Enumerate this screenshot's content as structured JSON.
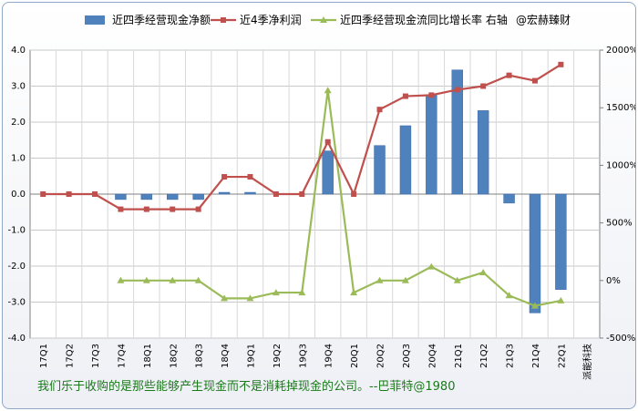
{
  "legend": {
    "items": [
      {
        "label": "近四季经营现金净额",
        "color": "#4f81bd",
        "kind": "bar"
      },
      {
        "label": "近4季净利润",
        "color": "#c0504d",
        "kind": "line-square"
      },
      {
        "label": "近四季经营现金流同比增长率 右轴",
        "color": "#9bbb59",
        "kind": "line-triangle"
      }
    ],
    "watermark": "@宏赫臻财"
  },
  "quote": "我们乐于收购的是那些能够产生现金而不是消耗掉现金的公司。--巴菲特@1980",
  "chart_data": {
    "type": "bar",
    "categories": [
      "17Q1",
      "17Q2",
      "17Q3",
      "17Q4",
      "18Q1",
      "18Q2",
      "18Q3",
      "18Q4",
      "19Q1",
      "19Q2",
      "19Q3",
      "19Q4",
      "20Q1",
      "20Q2",
      "20Q3",
      "20Q4",
      "21Q1",
      "21Q2",
      "21Q3",
      "21Q4",
      "22Q1",
      "派能科技"
    ],
    "y_left": {
      "min": -4.0,
      "max": 4.0,
      "step": 1.0,
      "tick_labels": [
        "4.0",
        "3.0",
        "2.0",
        "1.0",
        "0.0",
        "-1.0",
        "-2.0",
        "-3.0",
        "-4.0"
      ]
    },
    "y_right": {
      "min": -500,
      "max": 2000,
      "step": 500,
      "tick_labels": [
        "2000%",
        "1500%",
        "1000%",
        "500%",
        "0%",
        "-500%"
      ]
    },
    "series": [
      {
        "name": "近四季经营现金净额",
        "type": "bar",
        "axis": "left",
        "color": "#4f81bd",
        "values": [
          0,
          0,
          0,
          -0.15,
          -0.15,
          -0.15,
          -0.15,
          0.05,
          0.05,
          0,
          0,
          1.2,
          0,
          1.35,
          1.9,
          2.75,
          3.45,
          2.32,
          -0.25,
          -3.3,
          -2.65,
          null
        ]
      },
      {
        "name": "近4季净利润",
        "type": "line",
        "axis": "left",
        "color": "#c0504d",
        "values": [
          0,
          0,
          0,
          -0.42,
          -0.42,
          -0.42,
          -0.42,
          0.48,
          0.48,
          0,
          0,
          1.45,
          0,
          2.35,
          2.72,
          2.75,
          2.9,
          3.0,
          3.3,
          3.15,
          3.6,
          null
        ]
      },
      {
        "name": "近四季经营现金流同比增长率 右轴",
        "type": "line",
        "axis": "right",
        "color": "#9bbb59",
        "values": [
          null,
          null,
          null,
          0,
          0,
          0,
          0,
          -155,
          -155,
          -105,
          -105,
          1650,
          -105,
          0,
          0,
          120,
          0,
          70,
          -130,
          -220,
          -175,
          null
        ]
      }
    ],
    "grid": true,
    "legend_position": "top"
  }
}
